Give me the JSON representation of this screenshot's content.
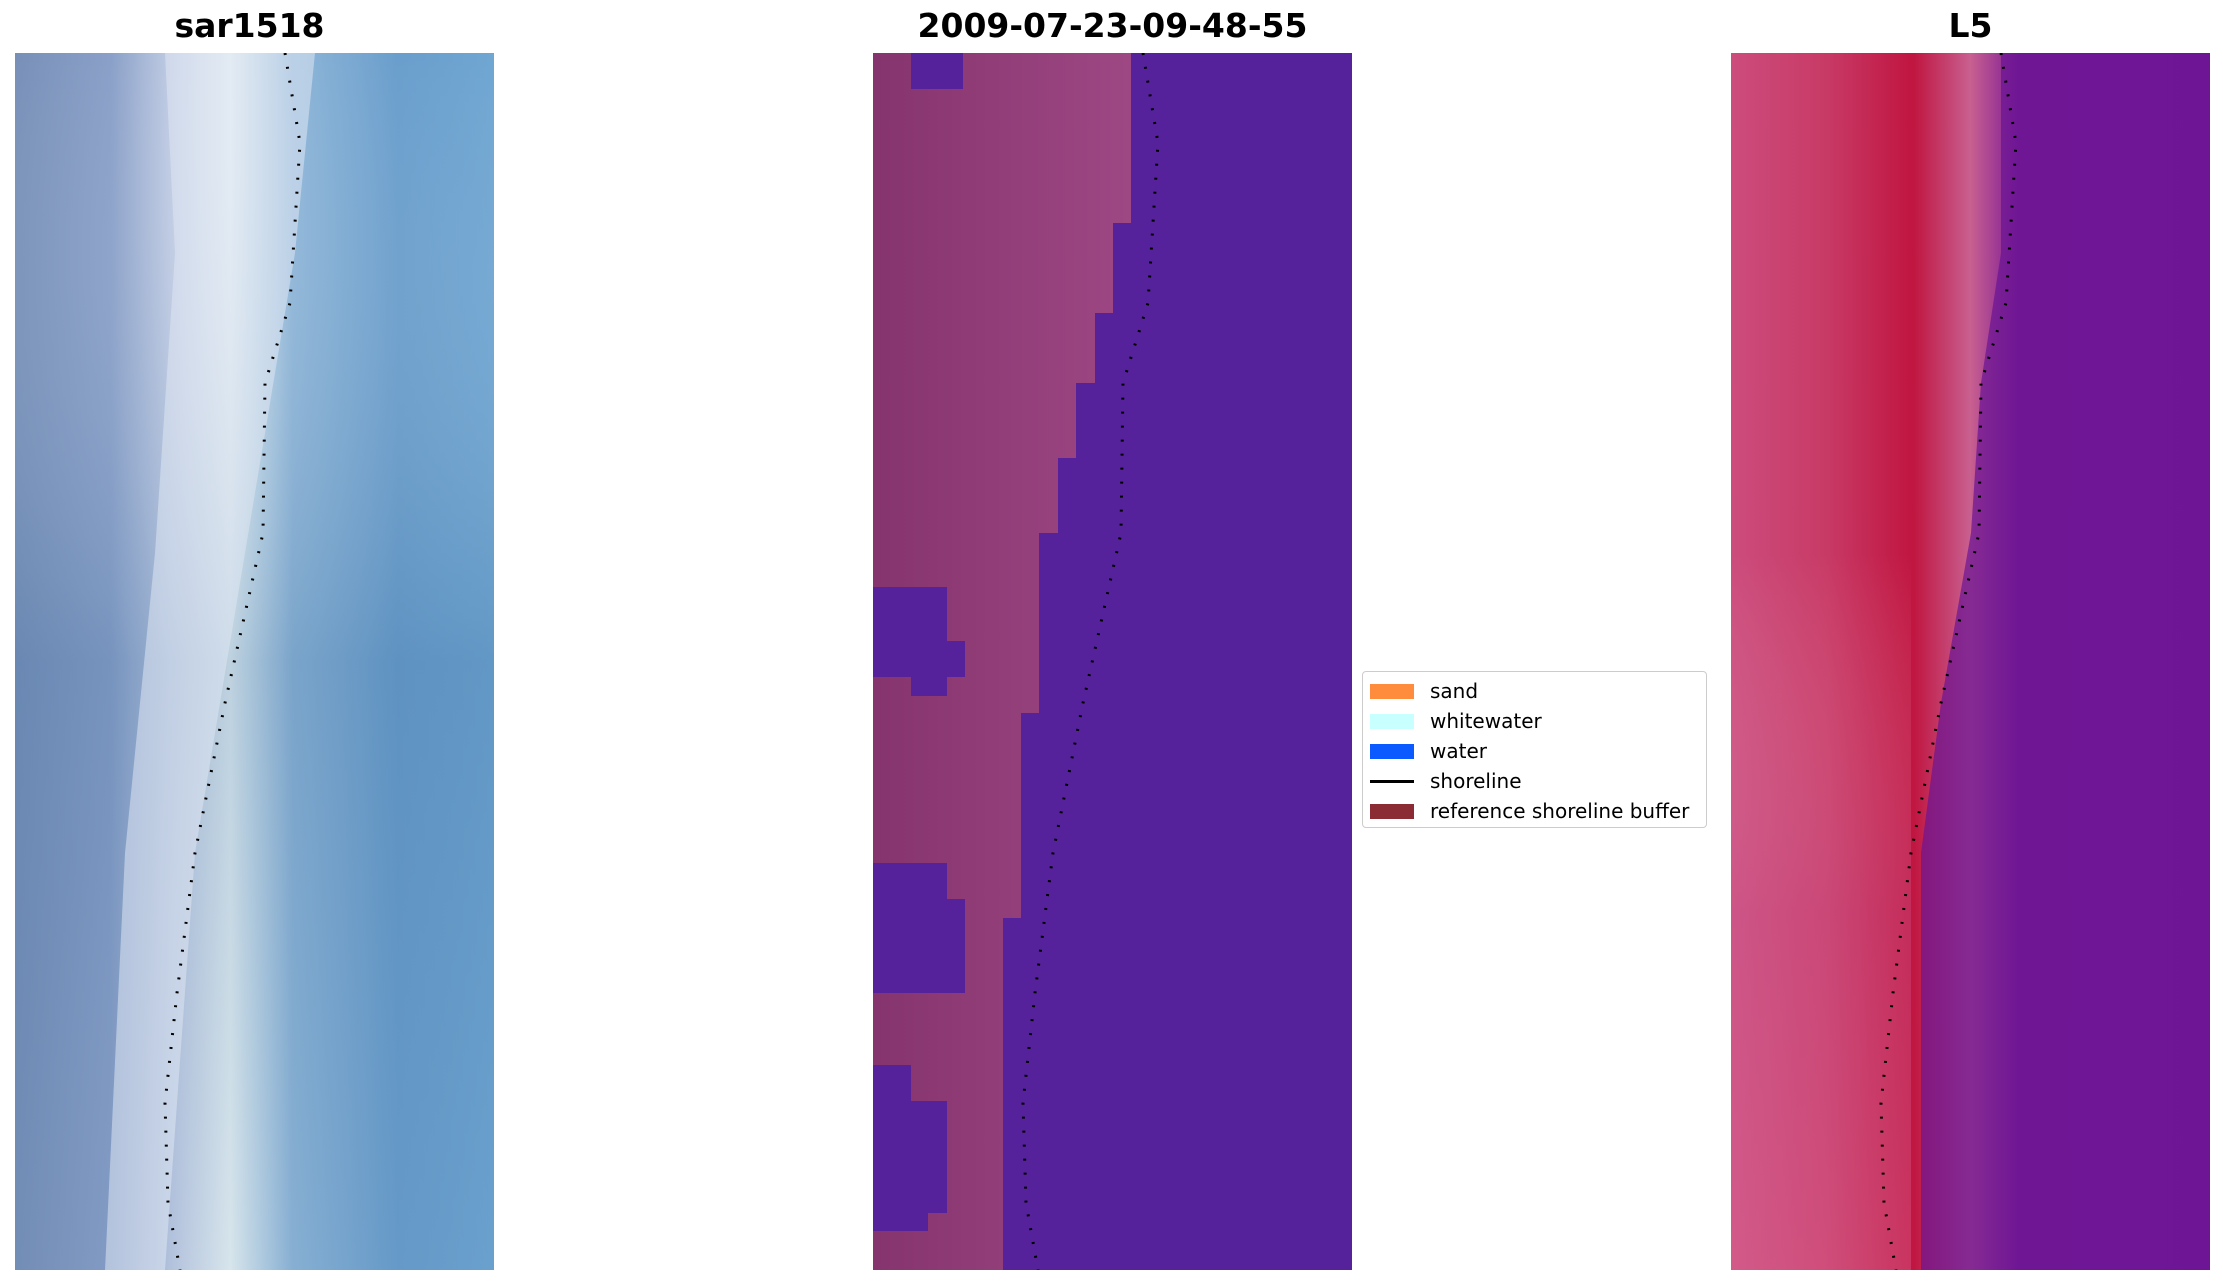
{
  "panels": [
    {
      "id": "rgb",
      "title": "sar1518"
    },
    {
      "id": "class",
      "title": "2009-07-23-09-48-55"
    },
    {
      "id": "ndwi",
      "title": "L5"
    }
  ],
  "legend": {
    "items": [
      {
        "label": "sand",
        "kind": "patch",
        "color": "#ff8c3c"
      },
      {
        "label": "whitewater",
        "kind": "patch",
        "color": "#c8ffff"
      },
      {
        "label": "water",
        "kind": "patch",
        "color": "#0a5aff"
      },
      {
        "label": "shoreline",
        "kind": "line",
        "color": "#000000"
      },
      {
        "label": "reference shoreline buffer",
        "kind": "patch",
        "color": "#8b2b33"
      }
    ]
  },
  "colors": {
    "rgb_sand": "#c8c8e6",
    "rgb_water": "#5a8cbe",
    "class_sand": "#a0508c",
    "class_water": "#55229b",
    "ndwi_land": "#c8204a",
    "ndwi_water": "#6a1494",
    "shoreline": "#000000"
  }
}
